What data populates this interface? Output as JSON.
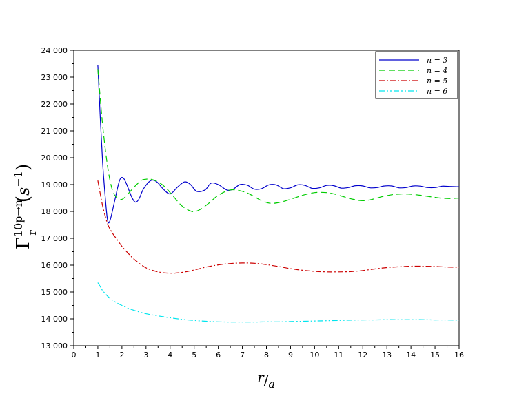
{
  "chart_data": {
    "type": "line",
    "xlim": [
      0,
      16
    ],
    "ylim": [
      13000,
      24000
    ],
    "xticks": [
      "0",
      "1",
      "2",
      "3",
      "4",
      "5",
      "6",
      "7",
      "8",
      "9",
      "10",
      "11",
      "12",
      "13",
      "14",
      "15",
      "16"
    ],
    "yticks": [
      "13 000",
      "14 000",
      "15 000",
      "16 000",
      "17 000",
      "18 000",
      "19 000",
      "20 000",
      "21 000",
      "22 000",
      "23 000",
      "24 000"
    ],
    "ylabel": "Γr10p→n(s−1)",
    "xlabel": "r/a",
    "legend_position": "top-right",
    "series": [
      {
        "name": "n = 3",
        "color": "#0000cc",
        "style": "solid",
        "x": [
          1.0,
          1.1,
          1.2,
          1.3,
          1.4,
          1.5,
          1.7,
          1.9,
          2.05,
          2.2,
          2.4,
          2.55,
          2.7,
          2.9,
          3.2,
          3.45,
          3.7,
          4.0,
          4.3,
          4.6,
          4.85,
          5.1,
          5.45,
          5.7,
          6.0,
          6.35,
          6.6,
          6.9,
          7.2,
          7.5,
          7.8,
          8.1,
          8.4,
          8.7,
          9.0,
          9.3,
          9.6,
          9.9,
          10.2,
          10.5,
          10.8,
          11.1,
          11.4,
          11.7,
          12.0,
          12.3,
          12.6,
          12.9,
          13.2,
          13.5,
          13.8,
          14.1,
          14.4,
          14.7,
          15.0,
          15.3,
          15.6,
          16.0
        ],
        "y": [
          23450,
          21500,
          19800,
          18600,
          17700,
          17650,
          18400,
          19150,
          19250,
          19000,
          18550,
          18350,
          18450,
          18850,
          19150,
          19100,
          18850,
          18650,
          18900,
          19100,
          19000,
          18750,
          18800,
          19050,
          19000,
          18800,
          18820,
          19000,
          18980,
          18830,
          18850,
          18990,
          18990,
          18850,
          18880,
          18990,
          18970,
          18860,
          18880,
          18970,
          18960,
          18870,
          18890,
          18960,
          18950,
          18880,
          18890,
          18950,
          18950,
          18880,
          18890,
          18950,
          18940,
          18890,
          18890,
          18940,
          18930,
          18920
        ]
      },
      {
        "name": "n = 4",
        "color": "#00cc00",
        "style": "dashed",
        "x": [
          1.0,
          1.2,
          1.4,
          1.6,
          1.8,
          2.0,
          2.2,
          2.5,
          2.8,
          3.0,
          3.2,
          3.5,
          3.8,
          4.1,
          4.5,
          4.9,
          5.2,
          5.6,
          6.0,
          6.5,
          7.0,
          7.4,
          7.8,
          8.2,
          8.6,
          9.0,
          9.5,
          10.0,
          10.5,
          10.8,
          11.2,
          11.6,
          12.0,
          12.4,
          12.8,
          13.2,
          13.6,
          14.0,
          14.4,
          14.8,
          15.2,
          15.6,
          16.0
        ],
        "y": [
          23300,
          21200,
          19700,
          18800,
          18500,
          18450,
          18600,
          18900,
          19150,
          19200,
          19200,
          19100,
          18900,
          18600,
          18200,
          18000,
          18050,
          18300,
          18600,
          18800,
          18750,
          18600,
          18400,
          18300,
          18350,
          18450,
          18600,
          18700,
          18700,
          18650,
          18550,
          18450,
          18400,
          18450,
          18550,
          18620,
          18650,
          18640,
          18600,
          18550,
          18500,
          18480,
          18500
        ]
      },
      {
        "name": "n = 5",
        "color": "#cc0000",
        "style": "dashdot",
        "x": [
          1.0,
          1.2,
          1.4,
          1.6,
          1.8,
          2.0,
          2.3,
          2.6,
          3.0,
          3.5,
          4.0,
          4.5,
          5.0,
          5.5,
          6.0,
          6.5,
          7.0,
          7.5,
          8.0,
          8.5,
          9.0,
          9.5,
          10.0,
          10.5,
          11.0,
          11.5,
          12.0,
          12.5,
          13.0,
          13.5,
          14.0,
          14.5,
          15.0,
          15.5,
          16.0
        ],
        "y": [
          19150,
          18200,
          17550,
          17200,
          16950,
          16700,
          16400,
          16150,
          15900,
          15750,
          15700,
          15730,
          15820,
          15930,
          16010,
          16060,
          16080,
          16070,
          16020,
          15950,
          15870,
          15810,
          15770,
          15750,
          15750,
          15760,
          15800,
          15860,
          15910,
          15940,
          15960,
          15960,
          15950,
          15930,
          15920
        ]
      },
      {
        "name": "n = 6",
        "color": "#00e5ee",
        "style": "dashdotdot",
        "x": [
          1.0,
          1.1,
          1.2,
          1.4,
          1.6,
          1.8,
          2.0,
          2.3,
          2.6,
          3.0,
          3.5,
          4.0,
          4.5,
          5.0,
          5.5,
          6.0,
          6.5,
          7.0,
          7.5,
          8.0,
          8.5,
          9.0,
          9.5,
          10.0,
          10.5,
          11.0,
          11.5,
          12.0,
          12.5,
          13.0,
          13.5,
          14.0,
          14.5,
          15.0,
          15.5,
          16.0
        ],
        "y": [
          15350,
          15200,
          15050,
          14850,
          14700,
          14590,
          14500,
          14380,
          14290,
          14190,
          14110,
          14040,
          13980,
          13940,
          13910,
          13890,
          13880,
          13880,
          13880,
          13890,
          13890,
          13900,
          13910,
          13920,
          13930,
          13940,
          13950,
          13960,
          13960,
          13970,
          13970,
          13970,
          13970,
          13960,
          13960,
          13950
        ]
      }
    ]
  }
}
